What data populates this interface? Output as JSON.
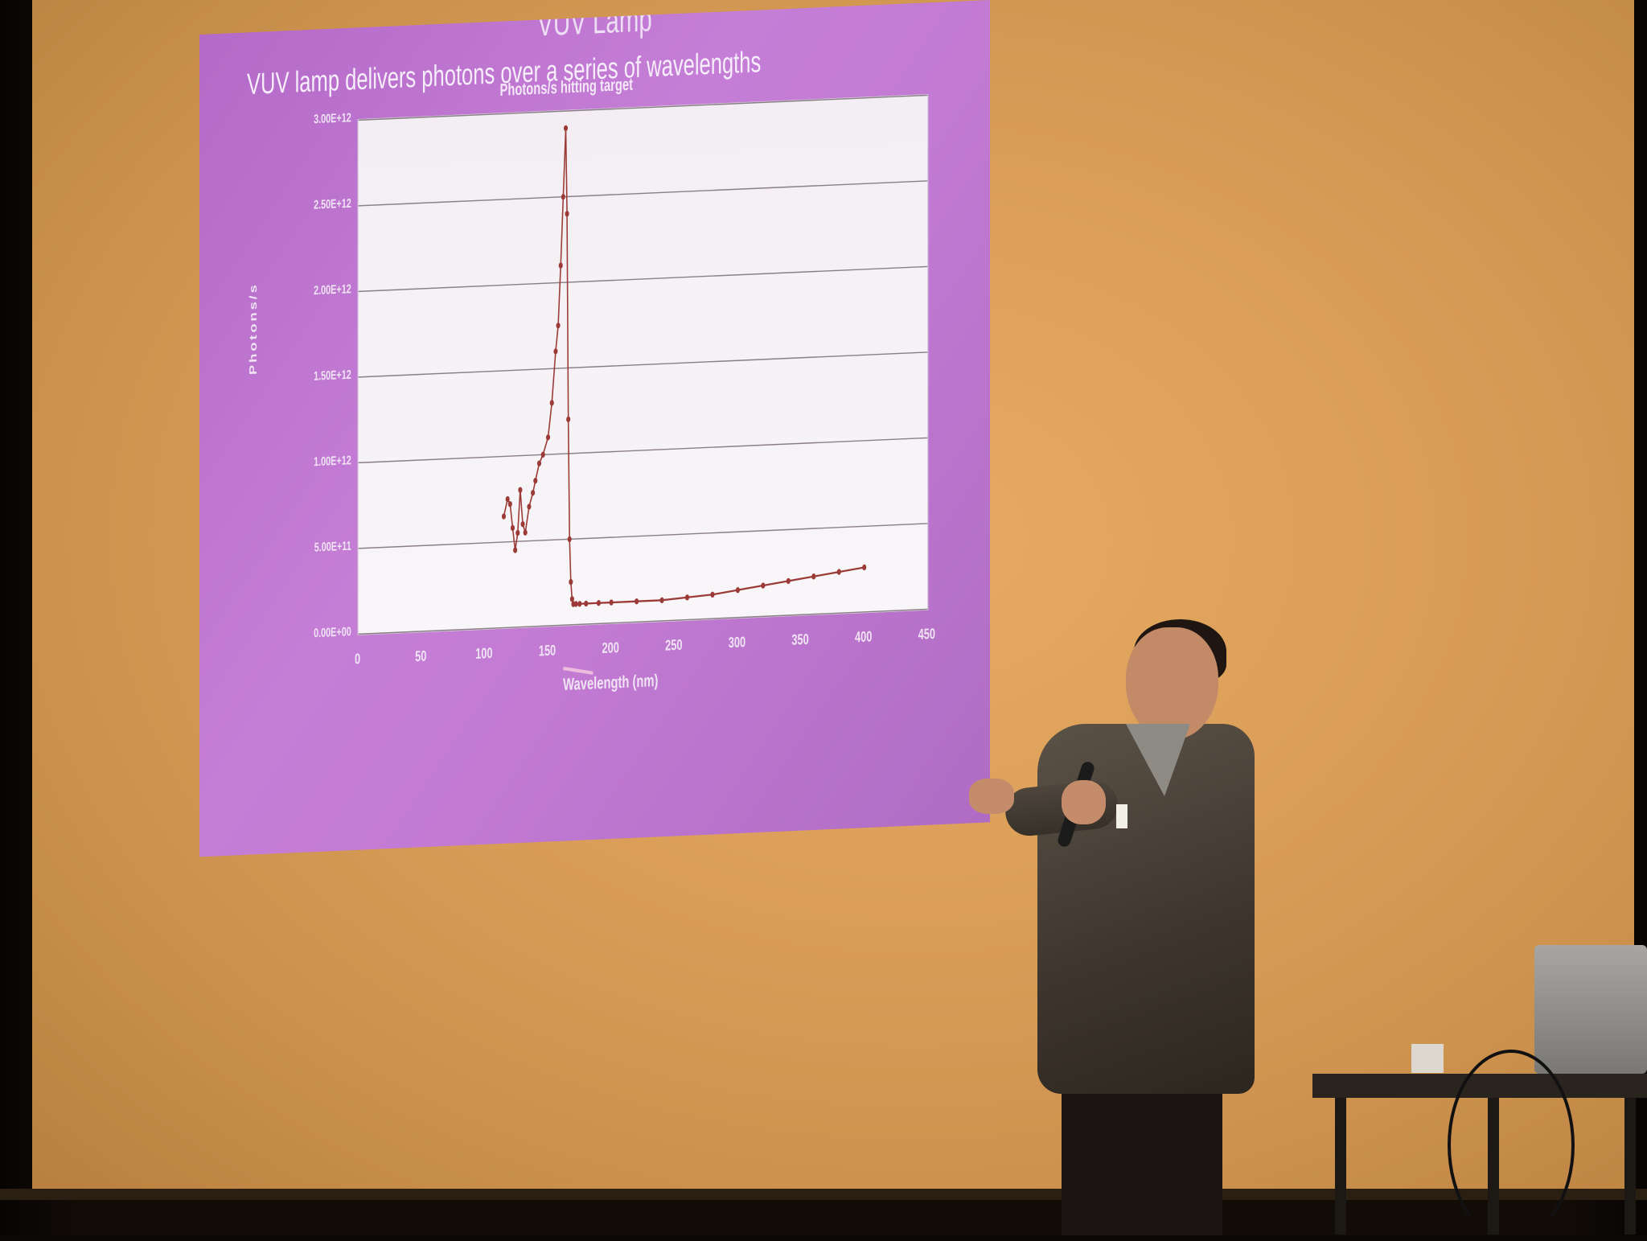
{
  "photo": {
    "caption_hidden": "",
    "colors": {
      "screen": "#dca05a",
      "slide": "#c17ad2",
      "plot": "#f5f2f5",
      "gridline": "#8a7f86",
      "series": "#9b3a36"
    }
  },
  "slide": {
    "heading": "VUV Lamp",
    "subtitle": "VUV lamp delivers photons over a series of wavelengths",
    "chart_title": "Photons/s hitting target"
  },
  "chart_data": {
    "type": "scatter",
    "title": "Photons/s hitting target",
    "xlabel": "Wavelength (nm)",
    "ylabel": "Photons/s",
    "xlim": [
      0,
      450
    ],
    "ylim": [
      0,
      3000000000000.0
    ],
    "x_ticks": [
      "0",
      "50",
      "100",
      "150",
      "200",
      "250",
      "300",
      "350",
      "400",
      "450"
    ],
    "y_ticks": [
      "0.00E+00",
      "5.00E+11",
      "1.00E+12",
      "1.50E+12",
      "2.00E+12",
      "2.50E+12",
      "3.00E+12"
    ],
    "grid": true,
    "series": [
      {
        "x": [
          115,
          118,
          120,
          122,
          124,
          126,
          128,
          130,
          132,
          135,
          138,
          140,
          143,
          146,
          150,
          153,
          156,
          158,
          160,
          162,
          164,
          165,
          166,
          167,
          168,
          169,
          170,
          172,
          175,
          180,
          190,
          200,
          220,
          240,
          260,
          280,
          300,
          320,
          340,
          360,
          380,
          400
        ],
        "y": [
          650000000000.0,
          750000000000.0,
          720000000000.0,
          580000000000.0,
          450000000000.0,
          550000000000.0,
          800000000000.0,
          600000000000.0,
          550000000000.0,
          700000000000.0,
          780000000000.0,
          850000000000.0,
          950000000000.0,
          1000000000000.0,
          1100000000000.0,
          1300000000000.0,
          1600000000000.0,
          1750000000000.0,
          2100000000000.0,
          2500000000000.0,
          2900000000000.0,
          2400000000000.0,
          1200000000000.0,
          500000000000.0,
          250000000000.0,
          150000000000.0,
          120000000000.0,
          120000000000.0,
          120000000000.0,
          120000000000.0,
          120000000000.0,
          120000000000.0,
          120000000000.0,
          120000000000.0,
          130000000000.0,
          140000000000.0,
          160000000000.0,
          180000000000.0,
          200000000000.0,
          220000000000.0,
          240000000000.0,
          260000000000.0
        ]
      }
    ]
  }
}
